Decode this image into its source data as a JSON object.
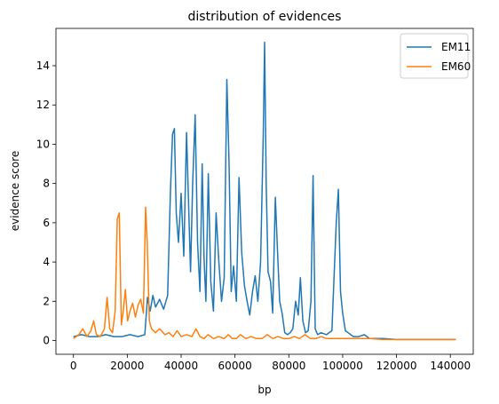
{
  "chart_data": {
    "type": "line",
    "title": "distribution of evidences",
    "xlabel": "bp",
    "ylabel": "evidence score",
    "xlim": [
      -6500,
      148500
    ],
    "ylim": [
      -0.7,
      15.9
    ],
    "xticks": [
      0,
      20000,
      40000,
      60000,
      80000,
      100000,
      120000,
      140000
    ],
    "xtick_labels": [
      "0",
      "20000",
      "40000",
      "60000",
      "80000",
      "100000",
      "120000",
      "140000"
    ],
    "yticks": [
      0,
      2,
      4,
      6,
      8,
      10,
      12,
      14
    ],
    "ytick_labels": [
      "0",
      "2",
      "4",
      "6",
      "8",
      "10",
      "12",
      "14"
    ],
    "grid": false,
    "legend_position": "top-right",
    "series": [
      {
        "name": "EM11",
        "color": "#1f77b4",
        "x": [
          0,
          3000,
          6000,
          9000,
          12000,
          15000,
          18000,
          21000,
          24000,
          26500,
          27500,
          28500,
          29500,
          30500,
          32000,
          33500,
          35000,
          36000,
          36800,
          37500,
          38200,
          39000,
          40000,
          41000,
          42000,
          42800,
          43500,
          44300,
          45200,
          46100,
          47000,
          47800,
          48500,
          49200,
          50100,
          51000,
          52000,
          53000,
          54000,
          55000,
          56000,
          57000,
          57800,
          58600,
          59500,
          60500,
          61500,
          62500,
          63500,
          64500,
          65500,
          66500,
          67500,
          68500,
          69500,
          70500,
          71000,
          71600,
          72300,
          73200,
          74000,
          75000,
          75800,
          76600,
          77500,
          78500,
          79500,
          80500,
          81500,
          82500,
          83500,
          84300,
          85200,
          86200,
          87200,
          88200,
          89000,
          89800,
          90700,
          92000,
          94000,
          96000,
          97600,
          98400,
          99200,
          100000,
          101000,
          102000,
          104000,
          106000,
          108000,
          110000,
          115000,
          120000,
          130000,
          142000
        ],
        "y": [
          0.2,
          0.3,
          0.2,
          0.2,
          0.3,
          0.2,
          0.2,
          0.3,
          0.2,
          0.3,
          2.2,
          1.5,
          2.3,
          1.7,
          2.1,
          1.6,
          2.3,
          7.5,
          10.5,
          10.8,
          6.5,
          5.0,
          7.5,
          4.3,
          10.6,
          6.8,
          3.5,
          8.0,
          11.5,
          5.0,
          2.5,
          9.0,
          4.2,
          2.0,
          8.5,
          3.0,
          1.5,
          6.5,
          4.0,
          2.0,
          3.2,
          13.3,
          9.0,
          2.5,
          3.8,
          2.0,
          8.3,
          4.5,
          2.8,
          2.0,
          1.3,
          2.5,
          3.3,
          2.0,
          4.0,
          10.5,
          15.2,
          8.0,
          3.5,
          3.0,
          1.4,
          7.3,
          4.5,
          2.0,
          1.4,
          0.4,
          0.3,
          0.4,
          0.6,
          2.0,
          1.3,
          3.2,
          1.0,
          0.4,
          0.5,
          2.0,
          8.4,
          0.6,
          0.3,
          0.4,
          0.3,
          0.5,
          6.0,
          7.7,
          2.5,
          1.4,
          0.5,
          0.4,
          0.2,
          0.2,
          0.3,
          0.1,
          0.1,
          0.05,
          0.05,
          0.05
        ]
      },
      {
        "name": "EM60",
        "color": "#ff7f0e",
        "x": [
          0,
          2000,
          3500,
          5000,
          6500,
          7500,
          8500,
          10000,
          11500,
          12500,
          13500,
          14500,
          15500,
          16300,
          17000,
          17800,
          18500,
          19300,
          20100,
          21000,
          22000,
          23000,
          24000,
          25000,
          26000,
          26800,
          27400,
          28200,
          29000,
          30500,
          32000,
          34000,
          35500,
          37000,
          38500,
          40000,
          42000,
          44000,
          45500,
          47000,
          48500,
          50000,
          52000,
          54000,
          56000,
          57500,
          59000,
          60500,
          62000,
          64000,
          66000,
          68000,
          70000,
          72000,
          74000,
          76000,
          78000,
          80000,
          82000,
          84000,
          86000,
          88000,
          90000,
          92000,
          94000,
          96000,
          98000,
          100000,
          105000,
          110000,
          115000,
          120000,
          130000,
          142000
        ],
        "y": [
          0.1,
          0.3,
          0.6,
          0.2,
          0.5,
          1.0,
          0.3,
          0.2,
          0.6,
          2.2,
          0.6,
          0.4,
          1.5,
          6.2,
          6.5,
          0.8,
          1.5,
          2.6,
          1.0,
          1.5,
          1.9,
          1.2,
          1.8,
          2.1,
          1.4,
          6.8,
          5.0,
          1.0,
          0.6,
          0.4,
          0.6,
          0.3,
          0.4,
          0.2,
          0.5,
          0.2,
          0.3,
          0.2,
          0.6,
          0.2,
          0.1,
          0.3,
          0.1,
          0.2,
          0.1,
          0.3,
          0.1,
          0.1,
          0.3,
          0.1,
          0.2,
          0.1,
          0.1,
          0.3,
          0.1,
          0.2,
          0.1,
          0.1,
          0.2,
          0.1,
          0.3,
          0.1,
          0.1,
          0.2,
          0.1,
          0.1,
          0.1,
          0.1,
          0.1,
          0.1,
          0.05,
          0.05,
          0.05,
          0.05
        ]
      }
    ]
  }
}
